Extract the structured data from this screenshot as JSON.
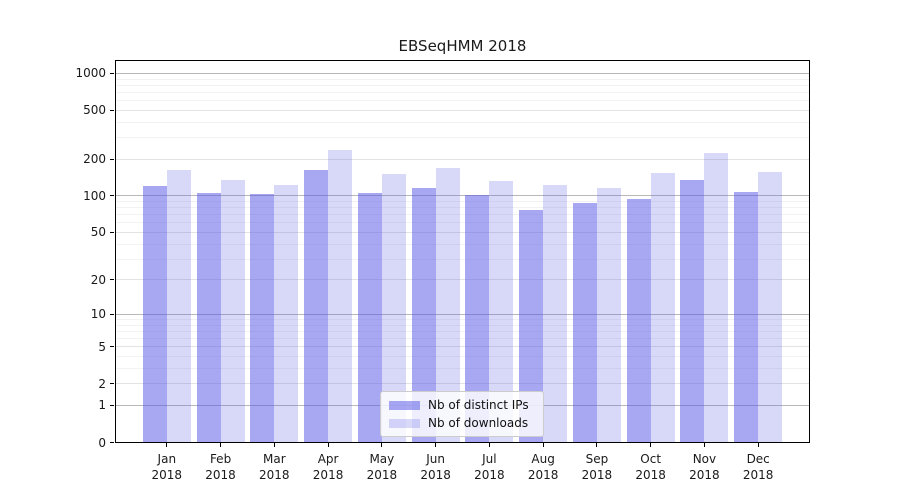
{
  "title": "EBSeqHMM 2018",
  "chart_data": {
    "type": "bar",
    "title": "EBSeqHMM 2018",
    "categories": [
      "Jan",
      "Feb",
      "Mar",
      "Apr",
      "May",
      "Jun",
      "Jul",
      "Aug",
      "Sep",
      "Oct",
      "Nov",
      "Dec"
    ],
    "category_year": "2018",
    "series": [
      {
        "name": "Nb of distinct IPs",
        "color": "rgba(90,90,230,0.53)",
        "values": [
          120,
          105,
          103,
          164,
          105,
          116,
          102,
          77,
          88,
          94,
          134,
          107
        ]
      },
      {
        "name": "Nb of downloads",
        "color": "rgba(90,90,230,0.24)",
        "values": [
          163,
          136,
          123,
          240,
          152,
          170,
          133,
          124,
          116,
          153,
          226,
          158
        ]
      }
    ],
    "yscale": "log1p",
    "y_ticks": [
      0,
      1,
      2,
      5,
      10,
      20,
      50,
      100,
      200,
      500,
      1000
    ],
    "ylim": [
      0,
      1300
    ],
    "xlabel": "",
    "ylabel": "",
    "grid": "horizontal",
    "legend_position": "lower-center-inside"
  },
  "colors": {
    "grid_major": "#b8b8b8",
    "grid_mid": "#e3e3e3",
    "grid_minor": "#f2f2f2",
    "spine": "#000000",
    "text": "#1a1a1a"
  }
}
